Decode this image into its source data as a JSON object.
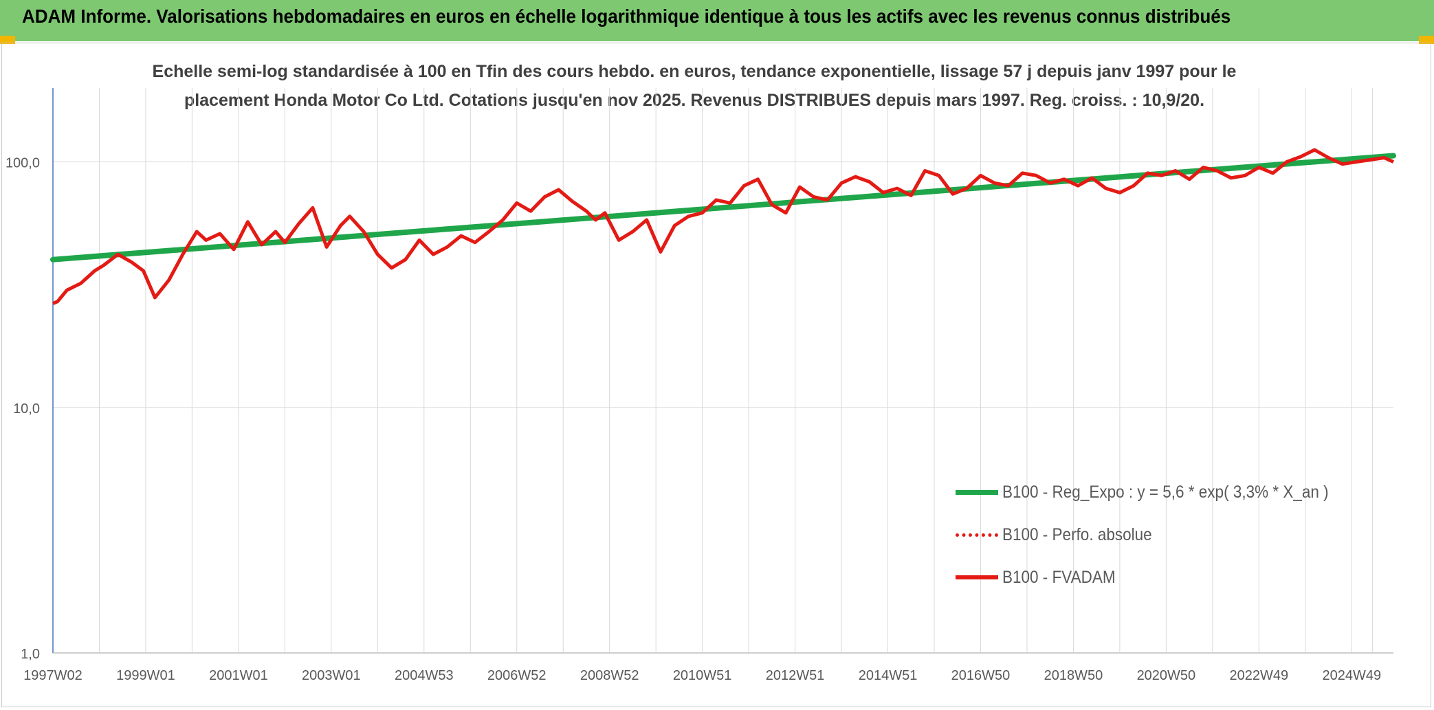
{
  "banner": {
    "title": "ADAM Informe. Valorisations hebdomadaires en euros en échelle logarithmique identique à tous les actifs avec les revenus connus distribués"
  },
  "colors": {
    "banner_bg": "#7ec872",
    "trend": "#1fa64a",
    "price": "#e31b14",
    "grid": "#d9d9d9",
    "axis": "#4472c4"
  },
  "chart_data": {
    "type": "line",
    "title_line1": "Echelle semi-log standardisée à 100 en Tfin des cours hebdo. en euros, tendance exponentielle, lissage 57 j depuis janv 1997 pour le",
    "title_line2": "placement Honda Motor Co Ltd. Cotations jusqu'en nov 2025. Revenus DISTRIBUES depuis mars 1997. Reg. croiss. : 10,9/20.",
    "y_scale": "log",
    "ylim": [
      1,
      200
    ],
    "y_ticks": [
      {
        "value": 100,
        "label": "100,0"
      },
      {
        "value": 10,
        "label": "10,0"
      },
      {
        "value": 1,
        "label": "1,0"
      }
    ],
    "xlim": [
      1997.0,
      2025.9
    ],
    "x_ticks": [
      {
        "value": 1997.0,
        "label": "1997W02"
      },
      {
        "value": 1999.0,
        "label": "1999W01"
      },
      {
        "value": 2001.0,
        "label": "2001W01"
      },
      {
        "value": 2003.0,
        "label": "2003W01"
      },
      {
        "value": 2005.0,
        "label": "2004W53"
      },
      {
        "value": 2007.0,
        "label": "2006W52"
      },
      {
        "value": 2009.0,
        "label": "2008W52"
      },
      {
        "value": 2011.0,
        "label": "2010W51"
      },
      {
        "value": 2013.0,
        "label": "2012W51"
      },
      {
        "value": 2015.0,
        "label": "2014W51"
      },
      {
        "value": 2017.0,
        "label": "2016W50"
      },
      {
        "value": 2019.0,
        "label": "2018W50"
      },
      {
        "value": 2021.0,
        "label": "2020W50"
      },
      {
        "value": 2023.0,
        "label": "2022W49"
      },
      {
        "value": 2025.0,
        "label": "2024W49"
      }
    ],
    "legend": [
      {
        "name": "B100 - Reg_Expo : y = 5,6 * exp( 3,3% *  X_an )",
        "style": "solid-green"
      },
      {
        "name": "B100 - Perfo. absolue",
        "style": "dotted-red"
      },
      {
        "name": "B100 - FVADAM",
        "style": "solid-red"
      }
    ],
    "series": [
      {
        "name": "B100 - Reg_Expo : y = 5,6 * exp( 3,3% *  X_an )",
        "x": [
          1997.0,
          2025.9
        ],
        "values": [
          40,
          106
        ]
      },
      {
        "name": "B100 - FVADAM",
        "x": [
          1997.0,
          1997.1,
          1997.3,
          1997.6,
          1997.9,
          1998.1,
          1998.4,
          1998.7,
          1998.95,
          1999.2,
          1999.5,
          1999.8,
          2000.1,
          2000.3,
          2000.6,
          2000.9,
          2001.2,
          2001.5,
          2001.8,
          2002.0,
          2002.3,
          2002.6,
          2002.9,
          2003.2,
          2003.4,
          2003.7,
          2004.0,
          2004.3,
          2004.6,
          2004.9,
          2005.2,
          2005.5,
          2005.8,
          2006.1,
          2006.4,
          2006.7,
          2007.0,
          2007.3,
          2007.6,
          2007.9,
          2008.2,
          2008.5,
          2008.7,
          2008.9,
          2009.2,
          2009.5,
          2009.8,
          2010.1,
          2010.4,
          2010.7,
          2011.0,
          2011.3,
          2011.6,
          2011.9,
          2012.2,
          2012.5,
          2012.8,
          2013.1,
          2013.4,
          2013.7,
          2014.0,
          2014.3,
          2014.6,
          2014.9,
          2015.2,
          2015.5,
          2015.8,
          2016.1,
          2016.4,
          2016.7,
          2017.0,
          2017.3,
          2017.6,
          2017.9,
          2018.2,
          2018.5,
          2018.8,
          2019.1,
          2019.4,
          2019.7,
          2020.0,
          2020.3,
          2020.6,
          2020.9,
          2021.2,
          2021.5,
          2021.8,
          2022.1,
          2022.4,
          2022.7,
          2023.0,
          2023.3,
          2023.6,
          2023.9,
          2024.2,
          2024.5,
          2024.8,
          2025.1,
          2025.4,
          2025.7,
          2025.9
        ],
        "values": [
          26.5,
          27,
          30,
          32,
          36,
          38,
          42,
          39,
          36,
          28,
          33,
          42,
          52,
          48,
          51,
          44,
          57,
          46,
          52,
          47,
          56,
          65,
          45,
          55,
          60,
          52,
          42,
          37,
          40,
          48,
          42,
          45,
          50,
          47,
          52,
          58,
          68,
          63,
          72,
          77,
          69,
          63,
          58,
          62,
          48,
          52,
          58,
          43,
          55,
          60,
          62,
          70,
          68,
          80,
          85,
          67,
          62,
          79,
          72,
          70,
          82,
          87,
          83,
          75,
          78,
          73,
          92,
          88,
          74,
          78,
          88,
          82,
          80,
          90,
          88,
          82,
          85,
          80,
          86,
          78,
          75,
          80,
          90,
          88,
          92,
          85,
          95,
          92,
          86,
          88,
          95,
          90,
          100,
          105,
          112,
          104,
          98,
          100,
          102,
          104,
          100
        ]
      }
    ]
  }
}
